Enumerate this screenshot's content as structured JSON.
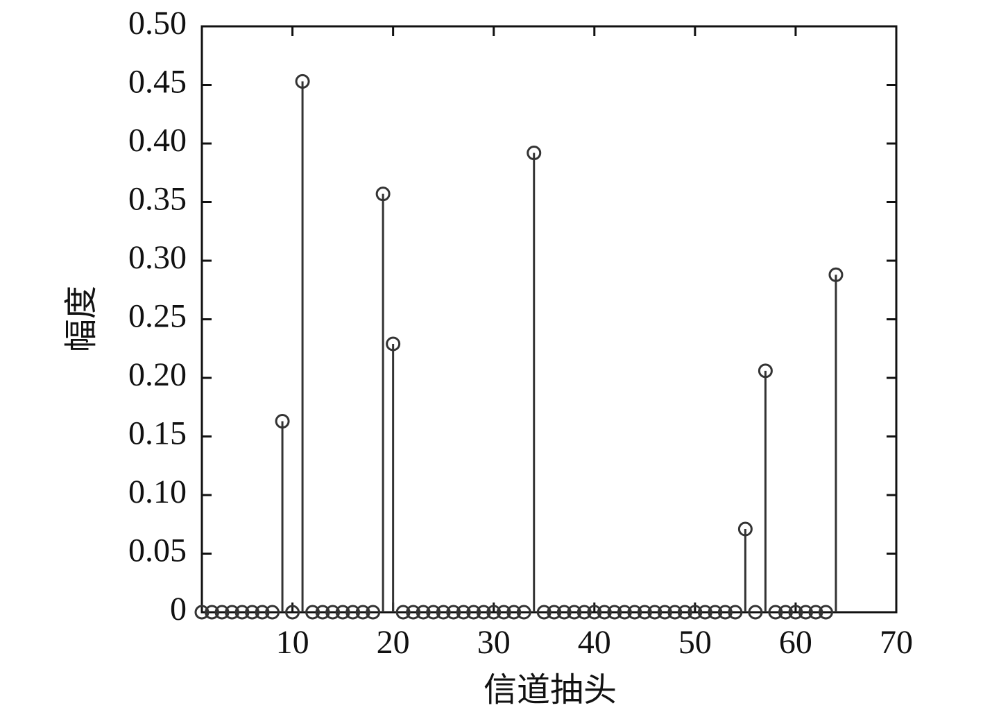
{
  "chart_data": {
    "type": "stem",
    "xlabel": "信道抽头",
    "ylabel": "幅度",
    "x": [
      1,
      2,
      3,
      4,
      5,
      6,
      7,
      8,
      9,
      10,
      11,
      12,
      13,
      14,
      15,
      16,
      17,
      18,
      19,
      20,
      21,
      22,
      23,
      24,
      25,
      26,
      27,
      28,
      29,
      30,
      31,
      32,
      33,
      34,
      35,
      36,
      37,
      38,
      39,
      40,
      41,
      42,
      43,
      44,
      45,
      46,
      47,
      48,
      49,
      50,
      51,
      52,
      53,
      54,
      55,
      56,
      57,
      58,
      59,
      60,
      61,
      62,
      63,
      64
    ],
    "values": [
      0,
      0,
      0,
      0,
      0,
      0,
      0,
      0,
      0.163,
      0,
      0.453,
      0,
      0,
      0,
      0,
      0,
      0,
      0,
      0.357,
      0.229,
      0,
      0,
      0,
      0,
      0,
      0,
      0,
      0,
      0,
      0,
      0,
      0,
      0,
      0.392,
      0,
      0,
      0,
      0,
      0,
      0,
      0,
      0,
      0,
      0,
      0,
      0,
      0,
      0,
      0,
      0,
      0,
      0,
      0,
      0,
      0.071,
      0,
      0.206,
      0,
      0,
      0,
      0,
      0,
      0,
      0.288
    ],
    "color": "#333333",
    "xlim": [
      1,
      70
    ],
    "xticks": [
      10,
      20,
      30,
      40,
      50,
      60,
      70
    ],
    "ylim": [
      0,
      0.5
    ],
    "yticks": [
      0,
      0.05,
      {
        "value": 0.1,
        "label": "0.10"
      },
      0.15,
      {
        "value": 0.2,
        "label": "0.20"
      },
      0.25,
      {
        "value": 0.3,
        "label": "0.30"
      },
      0.35,
      {
        "value": 0.4,
        "label": "0.40"
      },
      0.45,
      {
        "value": 0.5,
        "label": "0.50"
      }
    ]
  }
}
